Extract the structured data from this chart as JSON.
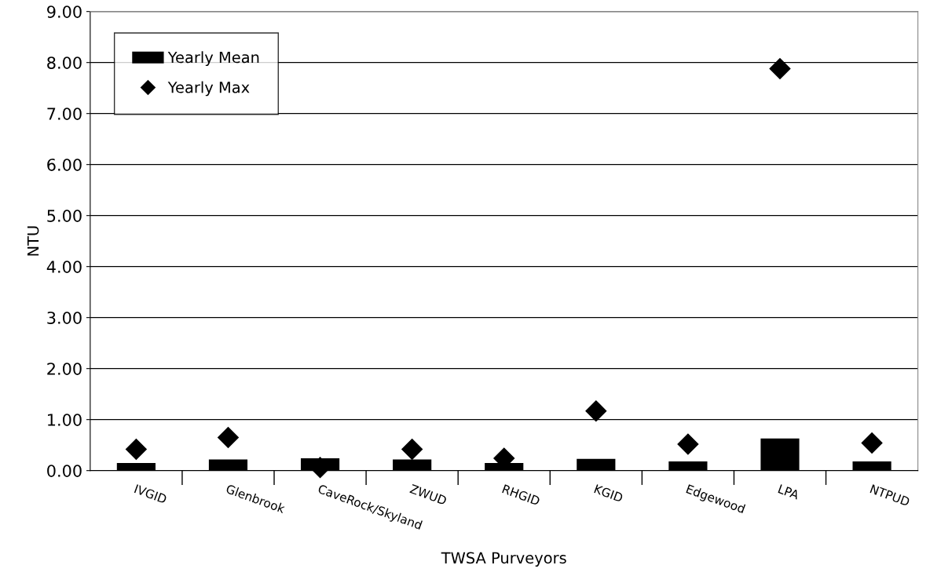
{
  "chart_data": {
    "type": "bar",
    "xlabel": "TWSA Purveyors",
    "ylabel": "NTU",
    "categories": [
      "IVGID",
      "Glenbrook",
      "CaveRock/Skyland",
      "ZWUD",
      "RHGID",
      "KGID",
      "Edgewood",
      "LPA",
      "NTPUD"
    ],
    "series": [
      {
        "name": "Yearly Mean",
        "color": "#000000",
        "values": [
          0.15,
          0.22,
          0.24,
          0.22,
          0.15,
          0.23,
          0.18,
          0.63,
          0.18
        ]
      },
      {
        "name": "Yearly Max",
        "type": "scatter",
        "color": "#000000",
        "marker": "diamond",
        "values": [
          0.42,
          0.65,
          0.06,
          0.42,
          0.24,
          1.17,
          0.52,
          7.88,
          0.54
        ]
      }
    ],
    "ylim": [
      0,
      9
    ],
    "yticks": [
      {
        "value": 0,
        "label": "0.00"
      },
      {
        "value": 1,
        "label": "1.00"
      },
      {
        "value": 2,
        "label": "2.00"
      },
      {
        "value": 3,
        "label": "3.00"
      },
      {
        "value": 4,
        "label": "4.00"
      },
      {
        "value": 5,
        "label": "5.00"
      },
      {
        "value": 6,
        "label": "6.00"
      },
      {
        "value": 7,
        "label": "7.00"
      },
      {
        "value": 8,
        "label": "8.00"
      },
      {
        "value": 9,
        "label": "9.00"
      }
    ],
    "grid": "y",
    "legend": "top left"
  }
}
